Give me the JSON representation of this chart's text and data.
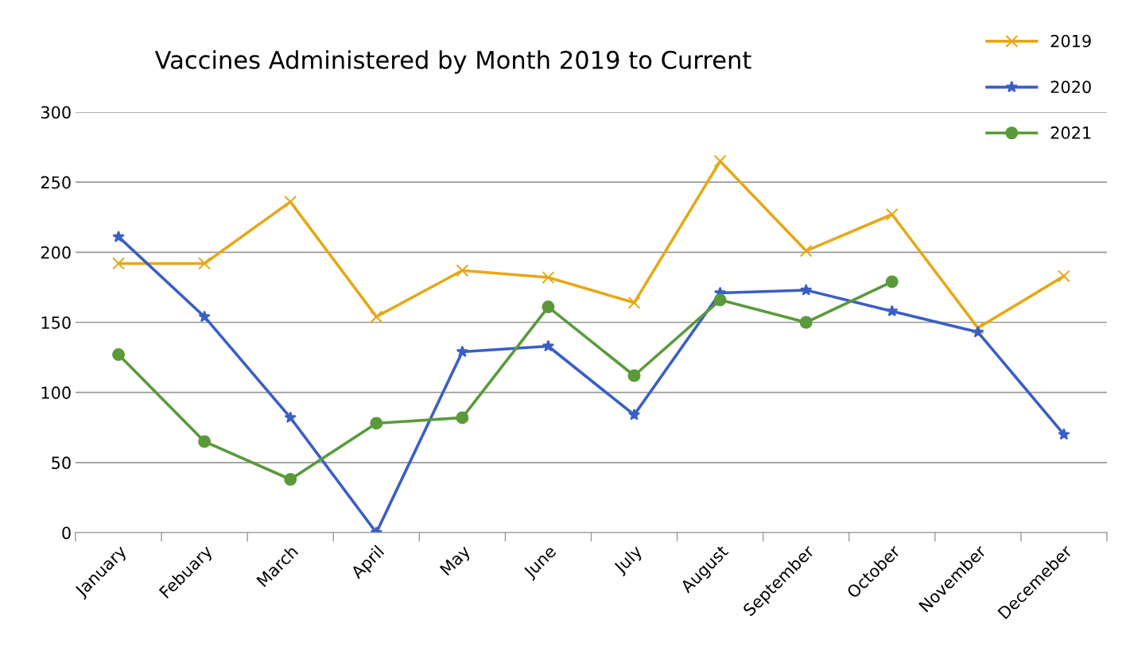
{
  "chart_data": {
    "type": "line",
    "title": "Vaccines Administered by Month 2019 to Current",
    "categories": [
      "January",
      "Febuary",
      "March",
      "April",
      "May",
      "June",
      "July",
      "August",
      "September",
      "October",
      "November",
      "Decemeber"
    ],
    "series": [
      {
        "name": "2019",
        "color": "#e6a817",
        "marker": "cross",
        "values": [
          192,
          192,
          236,
          154,
          187,
          182,
          164,
          265,
          201,
          227,
          146,
          183
        ]
      },
      {
        "name": "2020",
        "color": "#3a5fc4",
        "marker": "star",
        "values": [
          211,
          154,
          82,
          0,
          129,
          133,
          84,
          171,
          173,
          158,
          143,
          70
        ]
      },
      {
        "name": "2021",
        "color": "#5a9a3a",
        "marker": "circle",
        "values": [
          127,
          65,
          38,
          78,
          82,
          161,
          112,
          166,
          150,
          179,
          null,
          null
        ]
      }
    ],
    "ylim": [
      0,
      300
    ],
    "yticks": [
      0,
      50,
      100,
      150,
      200,
      250,
      300
    ],
    "grid": "y",
    "legend": "top right",
    "line_style": "solid"
  }
}
